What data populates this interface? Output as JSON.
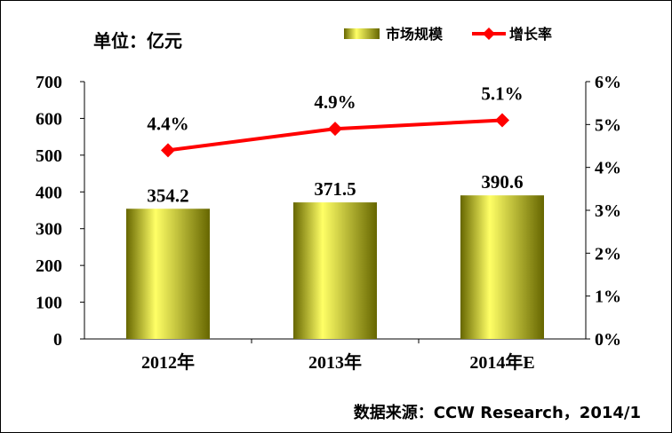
{
  "chart_data": {
    "type": "bar",
    "categories": [
      "2012年",
      "2013年",
      "2014年E"
    ],
    "series": [
      {
        "name": "市场规模",
        "type": "bar",
        "axis": "left",
        "values": [
          354.2,
          371.5,
          390.6
        ],
        "labels": [
          "354.2",
          "371.5",
          "390.6"
        ]
      },
      {
        "name": "增长率",
        "type": "line",
        "axis": "right",
        "values": [
          4.4,
          4.9,
          5.1
        ],
        "labels": [
          "4.4%",
          "4.9%",
          "5.1%"
        ]
      }
    ],
    "unit_label": "单位：亿元",
    "y_left": {
      "lim": [
        0,
        700
      ],
      "ticks": [
        "0",
        "100",
        "200",
        "300",
        "400",
        "500",
        "600",
        "700"
      ]
    },
    "y_right": {
      "lim": [
        0,
        6
      ],
      "ticks": [
        "0%",
        "1%",
        "2%",
        "3%",
        "4%",
        "5%",
        "6%"
      ]
    },
    "legend_position": "top-right",
    "grid": false,
    "source": "数据来源：CCW Research，2014/1"
  },
  "colors": {
    "bar_light": "#ffff66",
    "bar_mid": "#cccc00",
    "bar_dark": "#666600",
    "line": "#ff0000"
  }
}
